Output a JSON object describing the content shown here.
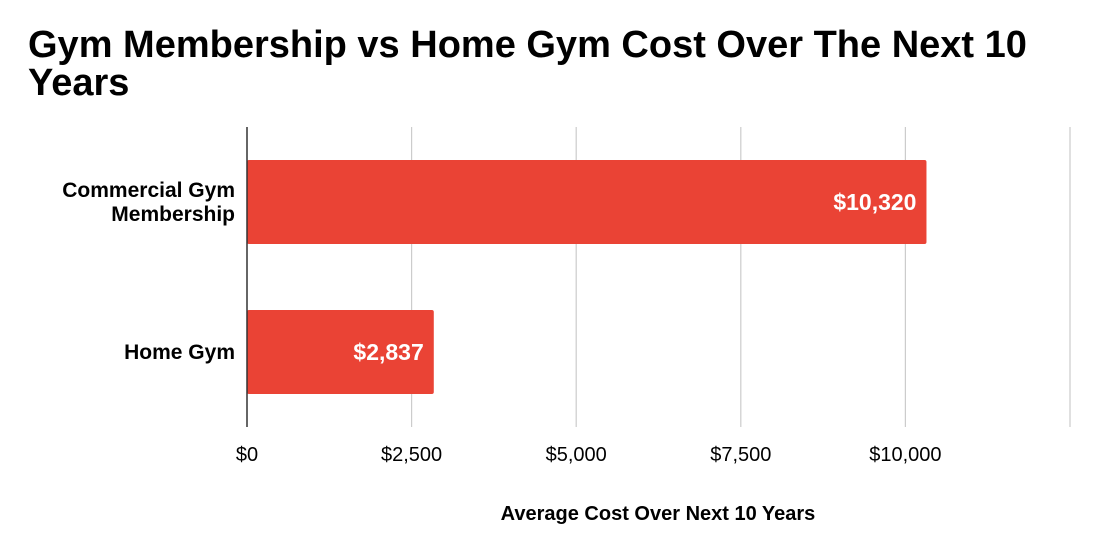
{
  "chart_data": {
    "type": "bar",
    "orientation": "horizontal",
    "title": "Gym Membership vs Home Gym Cost Over The Next 10 Years",
    "xlabel": "Average Cost Over Next 10 Years",
    "ylabel": "",
    "categories": [
      "Commercial Gym Membership",
      "Home Gym"
    ],
    "category_label_lines": [
      [
        "Commercial Gym",
        "Membership"
      ],
      [
        "Home Gym"
      ]
    ],
    "values": [
      10320,
      2837
    ],
    "data_labels": [
      "$10,320",
      "$2,837"
    ],
    "xlim": [
      0,
      12500
    ],
    "ticks": [
      0,
      2500,
      5000,
      7500,
      10000,
      12500
    ],
    "tick_labels": [
      "$0",
      "$2,500",
      "$5,000",
      "$7,500",
      "$10,000",
      ""
    ],
    "bar_color": "#ea4335",
    "grid": true,
    "legend": "none"
  }
}
